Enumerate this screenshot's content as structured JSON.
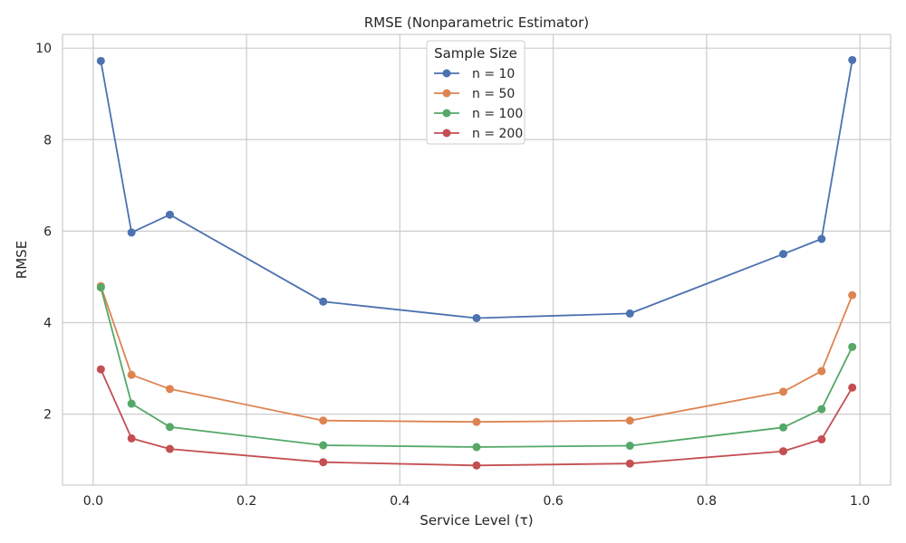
{
  "chart_data": {
    "type": "line",
    "title": "RMSE (Nonparametric Estimator)",
    "xlabel": "Service Level (τ)",
    "ylabel": "RMSE",
    "xlim": [
      -0.04,
      1.04
    ],
    "ylim": [
      0.45,
      10.3
    ],
    "xticks": [
      0.0,
      0.2,
      0.4,
      0.6,
      0.8,
      1.0
    ],
    "xtick_labels": [
      "0.0",
      "0.2",
      "0.4",
      "0.6",
      "0.8",
      "1.0"
    ],
    "yticks": [
      2,
      4,
      6,
      8,
      10
    ],
    "ytick_labels": [
      "2",
      "4",
      "6",
      "8",
      "10"
    ],
    "grid": true,
    "legend": {
      "title": "Sample Size",
      "position": "top-center"
    },
    "x": [
      0.01,
      0.05,
      0.1,
      0.3,
      0.5,
      0.7,
      0.9,
      0.95,
      0.99
    ],
    "series": [
      {
        "name": "n = 10",
        "color": "#4c72b0",
        "values": [
          9.72,
          5.97,
          6.36,
          4.46,
          4.1,
          4.2,
          5.5,
          5.83,
          9.74
        ]
      },
      {
        "name": "n = 50",
        "color": "#dd8452",
        "values": [
          4.8,
          2.86,
          2.55,
          1.86,
          1.83,
          1.86,
          2.49,
          2.94,
          4.6
        ]
      },
      {
        "name": "n = 100",
        "color": "#55a868",
        "values": [
          4.77,
          2.23,
          1.72,
          1.32,
          1.28,
          1.31,
          1.71,
          2.11,
          3.47
        ]
      },
      {
        "name": "n = 200",
        "color": "#c44e52",
        "values": [
          2.98,
          1.47,
          1.24,
          0.95,
          0.88,
          0.92,
          1.19,
          1.45,
          2.58
        ]
      }
    ]
  }
}
